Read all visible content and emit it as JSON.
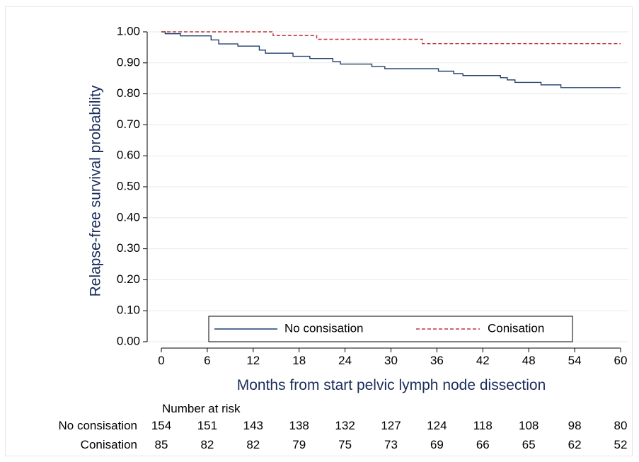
{
  "chart_data": {
    "type": "line",
    "xlabel": "Months from start pelvic lymph node dissection",
    "ylabel": "Relapse-free survival probability",
    "xlim": [
      0,
      60
    ],
    "ylim": [
      0,
      1
    ],
    "x_ticks": [
      0,
      6,
      12,
      18,
      24,
      30,
      36,
      42,
      48,
      54,
      60
    ],
    "y_ticks": [
      0.0,
      0.1,
      0.2,
      0.3,
      0.4,
      0.5,
      0.6,
      0.7,
      0.8,
      0.9,
      1.0
    ],
    "y_tick_labels": [
      "0.00",
      "0.10",
      "0.20",
      "0.30",
      "0.40",
      "0.50",
      "0.60",
      "0.70",
      "0.80",
      "0.90",
      "1.00"
    ],
    "grid": "horizontal",
    "legend_position": "bottom-center",
    "series": [
      {
        "name": "No consisation",
        "color": "#1f3f6e",
        "style": "solid",
        "steps": [
          [
            0,
            1.0
          ],
          [
            0.5,
            0.994
          ],
          [
            2.5,
            0.987
          ],
          [
            6.5,
            0.974
          ],
          [
            7.5,
            0.961
          ],
          [
            10,
            0.954
          ],
          [
            12.8,
            0.941
          ],
          [
            13.6,
            0.931
          ],
          [
            17.2,
            0.921
          ],
          [
            19.4,
            0.914
          ],
          [
            22.4,
            0.904
          ],
          [
            23.4,
            0.896
          ],
          [
            27.5,
            0.888
          ],
          [
            29.2,
            0.881
          ],
          [
            36.2,
            0.873
          ],
          [
            38.2,
            0.865
          ],
          [
            39.4,
            0.859
          ],
          [
            44.3,
            0.852
          ],
          [
            45.2,
            0.845
          ],
          [
            46.2,
            0.837
          ],
          [
            49.6,
            0.829
          ],
          [
            52.2,
            0.82
          ],
          [
            60,
            0.82
          ]
        ]
      },
      {
        "name": "Conisation",
        "color": "#c0353a",
        "style": "dashed",
        "steps": [
          [
            0,
            1.0
          ],
          [
            14.6,
            0.988
          ],
          [
            20.3,
            0.976
          ],
          [
            34.1,
            0.962
          ],
          [
            60,
            0.962
          ]
        ]
      }
    ],
    "risk_table": {
      "title": "Number at risk",
      "rows": [
        {
          "label": "No consisation",
          "values": [
            "154",
            "151",
            "143",
            "138",
            "132",
            "127",
            "124",
            "118",
            "108",
            "98",
            "80"
          ]
        },
        {
          "label": "Conisation",
          "values": [
            "85",
            "82",
            "82",
            "79",
            "75",
            "73",
            "69",
            "66",
            "65",
            "62",
            "52"
          ]
        }
      ]
    }
  }
}
